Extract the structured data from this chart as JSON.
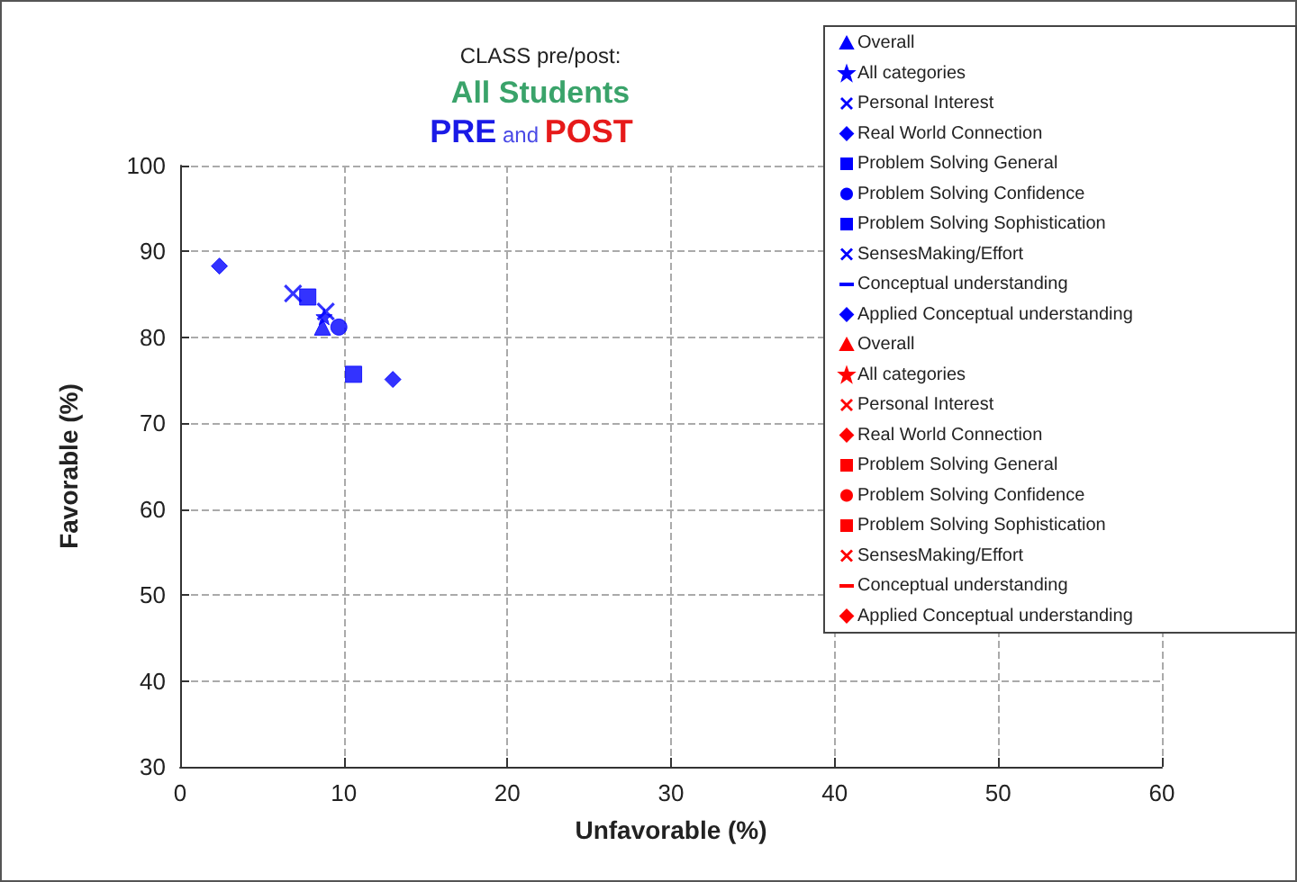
{
  "chart_data": {
    "type": "scatter",
    "title": "CLASS pre/post:",
    "subtitle": "All Students",
    "annotations": [
      "PRE and POST"
    ],
    "xlabel": "Unfavorable (%)",
    "ylabel": "Favorable (%)",
    "xlim": [
      0,
      60
    ],
    "xticks": [
      0,
      10,
      20,
      30,
      40,
      50,
      60
    ],
    "ylim": [
      30,
      100
    ],
    "yticks": [
      30,
      40,
      50,
      60,
      70,
      80,
      90,
      100
    ],
    "grid": true,
    "legend": "top right",
    "series": [
      {
        "name": "Overall",
        "color": "#0000ff",
        "marker": "triangle",
        "x": [
          8.7
        ],
        "values": [
          81.2
        ]
      },
      {
        "name": "All categories",
        "color": "#0000ff",
        "marker": "star",
        "x": [
          8.8
        ],
        "values": [
          82.4
        ]
      },
      {
        "name": "Personal Interest",
        "color": "#0000ff",
        "marker": "cross",
        "x": [
          8.9
        ],
        "values": [
          83
        ]
      },
      {
        "name": "Real World Connection",
        "color": "#0000ff",
        "marker": "diamond",
        "x": [
          2.4
        ],
        "values": [
          88.3
        ]
      },
      {
        "name": "Problem Solving General",
        "color": "#0000ff",
        "marker": "square",
        "x": [
          7.8
        ],
        "values": [
          84.7
        ]
      },
      {
        "name": "Problem Solving Confidence",
        "color": "#0000ff",
        "marker": "circle",
        "x": [
          9.7
        ],
        "values": [
          81.2
        ]
      },
      {
        "name": "Problem Solving Sophistication",
        "color": "#0000ff",
        "marker": "square",
        "x": [
          10.6
        ],
        "values": [
          75.7
        ]
      },
      {
        "name": "SensesMaking/Effort",
        "color": "#0000ff",
        "marker": "cross",
        "x": [
          6.9
        ],
        "values": [
          85.1
        ]
      },
      {
        "name": "Conceptual understanding",
        "color": "#0000ff",
        "marker": "none",
        "x": [
          null
        ],
        "values": [
          null
        ]
      },
      {
        "name": "Applied Conceptual understanding",
        "color": "#0000ff",
        "marker": "diamond",
        "x": [
          13
        ],
        "values": [
          75.1
        ]
      },
      {
        "name": "Overall",
        "color": "#ff0000",
        "marker": "triangle",
        "x": [
          null
        ],
        "values": [
          null
        ]
      },
      {
        "name": "All categories",
        "color": "#ff0000",
        "marker": "star",
        "x": [
          null
        ],
        "values": [
          null
        ]
      },
      {
        "name": "Personal Interest",
        "color": "#ff0000",
        "marker": "cross",
        "x": [
          null
        ],
        "values": [
          null
        ]
      },
      {
        "name": "Real World Connection",
        "color": "#ff0000",
        "marker": "diamond",
        "x": [
          null
        ],
        "values": [
          null
        ]
      },
      {
        "name": "Problem Solving General",
        "color": "#ff0000",
        "marker": "square",
        "x": [
          null
        ],
        "values": [
          null
        ]
      },
      {
        "name": "Problem Solving Confidence",
        "color": "#ff0000",
        "marker": "circle",
        "x": [
          null
        ],
        "values": [
          null
        ]
      },
      {
        "name": "Problem Solving Sophistication",
        "color": "#ff0000",
        "marker": "square",
        "x": [
          null
        ],
        "values": [
          null
        ]
      },
      {
        "name": "SensesMaking/Effort",
        "color": "#ff0000",
        "marker": "cross",
        "x": [
          null
        ],
        "values": [
          null
        ]
      },
      {
        "name": "Conceptual understanding",
        "color": "#ff0000",
        "marker": "none",
        "x": [
          null
        ],
        "values": [
          null
        ]
      },
      {
        "name": "Applied Conceptual understanding",
        "color": "#ff0000",
        "marker": "diamond",
        "x": [
          null
        ],
        "values": [
          null
        ]
      }
    ]
  }
}
